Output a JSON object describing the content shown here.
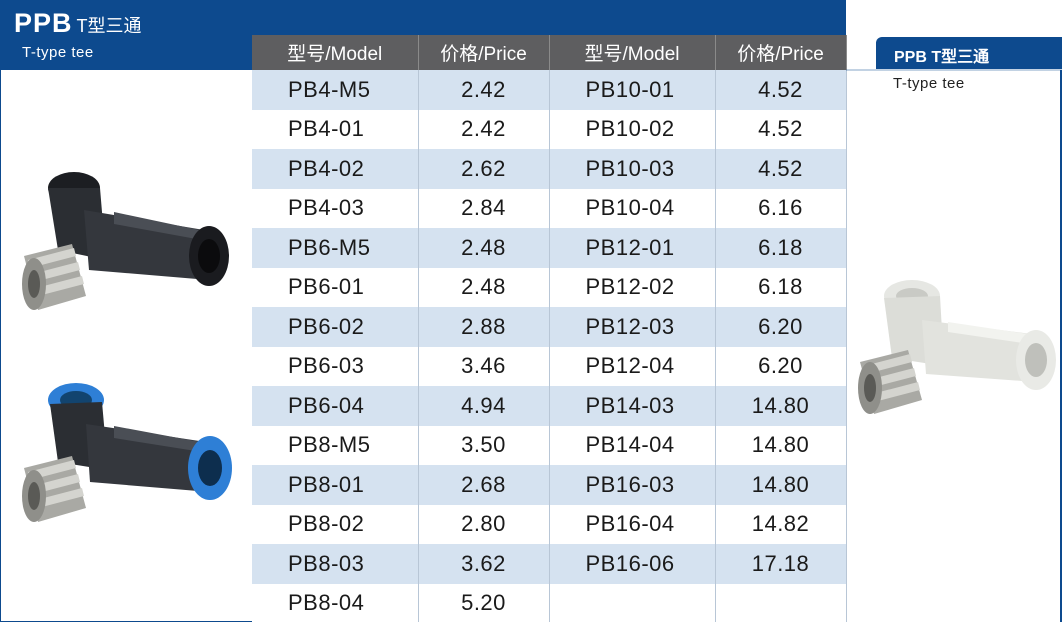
{
  "header": {
    "title": "PPB",
    "title_cn": "T型三通",
    "subtitle": "T-type tee"
  },
  "table": {
    "headers": [
      "型号/Model",
      "价格/Price",
      "型号/Model",
      "价格/Price"
    ],
    "left": [
      {
        "model": "PB4-M5",
        "price": "2.42"
      },
      {
        "model": "PB4-01",
        "price": "2.42"
      },
      {
        "model": "PB4-02",
        "price": "2.62"
      },
      {
        "model": "PB4-03",
        "price": "2.84"
      },
      {
        "model": "PB6-M5",
        "price": "2.48"
      },
      {
        "model": "PB6-01",
        "price": "2.48"
      },
      {
        "model": "PB6-02",
        "price": "2.88"
      },
      {
        "model": "PB6-03",
        "price": "3.46"
      },
      {
        "model": "PB6-04",
        "price": "4.94"
      },
      {
        "model": "PB8-M5",
        "price": "3.50"
      },
      {
        "model": "PB8-01",
        "price": "2.68"
      },
      {
        "model": "PB8-02",
        "price": "2.80"
      },
      {
        "model": "PB8-03",
        "price": "3.62"
      },
      {
        "model": "PB8-04",
        "price": "5.20"
      }
    ],
    "right": [
      {
        "model": "PB10-01",
        "price": "4.52"
      },
      {
        "model": "PB10-02",
        "price": "4.52"
      },
      {
        "model": "PB10-03",
        "price": "4.52"
      },
      {
        "model": "PB10-04",
        "price": "6.16"
      },
      {
        "model": "PB12-01",
        "price": "6.18"
      },
      {
        "model": "PB12-02",
        "price": "6.18"
      },
      {
        "model": "PB12-03",
        "price": "6.20"
      },
      {
        "model": "PB12-04",
        "price": "6.20"
      },
      {
        "model": "PB14-03",
        "price": "14.80"
      },
      {
        "model": "PB14-04",
        "price": "14.80"
      },
      {
        "model": "PB16-03",
        "price": "14.80"
      },
      {
        "model": "PB16-04",
        "price": "14.82"
      },
      {
        "model": "PB16-06",
        "price": "17.18"
      },
      {
        "model": "",
        "price": ""
      }
    ]
  },
  "side": {
    "title": "PPB T型三通",
    "subtitle": "T-type tee"
  },
  "images": {
    "black_tee_color": "#2b2e33",
    "blue_tee_color": "#2e7fd6",
    "white_tee_color": "#dfe0dc",
    "brass_color": "#b9b9b4"
  }
}
